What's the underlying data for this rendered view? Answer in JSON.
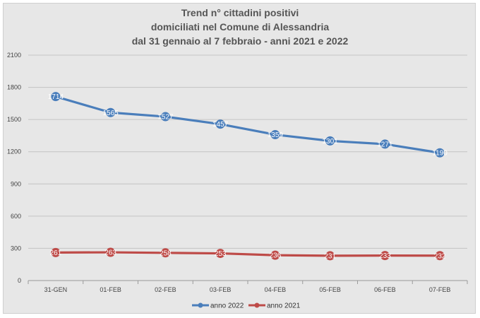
{
  "chart_data": {
    "type": "line",
    "title": [
      "Trend n° cittadini positivi",
      "domiciliati nel Comune di Alessandria",
      "dal 31 gennaio al 7 febbraio - anni 2021 e 2022"
    ],
    "categories": [
      "31-GEN",
      "01-FEB",
      "02-FEB",
      "03-FEB",
      "04-FEB",
      "05-FEB",
      "06-FEB",
      "07-FEB"
    ],
    "ylim": [
      0,
      2100
    ],
    "yticks": [
      0,
      300,
      600,
      900,
      1200,
      1500,
      1800,
      2100
    ],
    "grid": true,
    "legend_position": "bottom",
    "series": [
      {
        "name": "anno 2022",
        "color": "#4a7ebb",
        "values": [
          1714,
          1565,
          1527,
          1457,
          1359,
          1301,
          1271,
          1190
        ]
      },
      {
        "name": "anno 2021",
        "color": "#be4b48",
        "values": [
          261,
          263,
          258,
          253,
          236,
          231,
          233,
          232
        ]
      }
    ]
  }
}
